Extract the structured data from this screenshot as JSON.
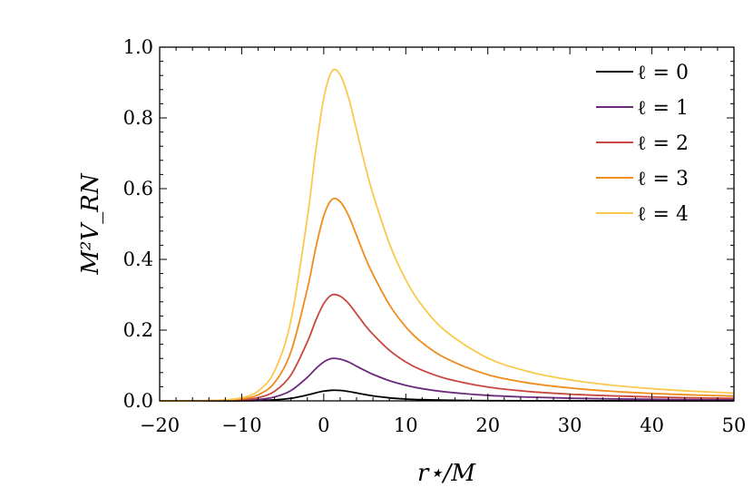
{
  "chart_data": {
    "type": "line",
    "xlabel": "r⋆/M",
    "ylabel": "M²V_RN",
    "xlim": [
      -20,
      50
    ],
    "ylim": [
      0,
      1.0
    ],
    "x_ticks": [
      -20,
      -10,
      0,
      10,
      20,
      30,
      40,
      50
    ],
    "x_tick_labels": [
      "−20",
      "−10",
      "0",
      "10",
      "20",
      "30",
      "40",
      "50"
    ],
    "y_ticks": [
      0,
      0.2,
      0.4,
      0.6,
      0.8,
      1.0
    ],
    "y_tick_labels": [
      "0.0",
      "0.2",
      "0.4",
      "0.6",
      "0.8",
      "1.0"
    ],
    "grid": false,
    "legend_position": "top-right",
    "x": [
      -20,
      -15,
      -12,
      -10,
      -8,
      -6,
      -4,
      -2,
      -1,
      0,
      1,
      2,
      3,
      4,
      5,
      6,
      8,
      10,
      12,
      15,
      20,
      25,
      30,
      35,
      40,
      45,
      50
    ],
    "series": [
      {
        "name": "ℓ = 0",
        "color": "#000000",
        "values": [
          0,
          0,
          0.0001,
          0.0003,
          0.0009,
          0.0027,
          0.0073,
          0.0166,
          0.0226,
          0.0275,
          0.03,
          0.0295,
          0.0265,
          0.0223,
          0.018,
          0.0141,
          0.0085,
          0.0052,
          0.0033,
          0.0018,
          0.0007,
          0.0003,
          0.0001,
          0.0001,
          0,
          0,
          0
        ]
      },
      {
        "name": "ℓ = 1",
        "color": "#6c2a7a",
        "values": [
          0,
          0.0001,
          0.0004,
          0.0012,
          0.0036,
          0.0108,
          0.0292,
          0.0666,
          0.0904,
          0.11,
          0.1198,
          0.118,
          0.11,
          0.098,
          0.086,
          0.075,
          0.057,
          0.044,
          0.0345,
          0.025,
          0.0155,
          0.0105,
          0.0075,
          0.0056,
          0.0043,
          0.0034,
          0.0028
        ]
      },
      {
        "name": "ℓ = 2",
        "color": "#c9473f",
        "values": [
          0,
          0.0002,
          0.0009,
          0.0028,
          0.0089,
          0.027,
          0.0731,
          0.1665,
          0.226,
          0.275,
          0.2995,
          0.296,
          0.276,
          0.246,
          0.215,
          0.188,
          0.143,
          0.11,
          0.0865,
          0.0625,
          0.039,
          0.0265,
          0.019,
          0.0142,
          0.011,
          0.0087,
          0.0071
        ]
      },
      {
        "name": "ℓ = 3",
        "color": "#f08c1e",
        "values": [
          0,
          0.0003,
          0.0018,
          0.0055,
          0.017,
          0.0514,
          0.139,
          0.3165,
          0.4295,
          0.523,
          0.5695,
          0.563,
          0.525,
          0.468,
          0.409,
          0.3575,
          0.272,
          0.209,
          0.1645,
          0.119,
          0.074,
          0.0505,
          0.0365,
          0.0272,
          0.021,
          0.0167,
          0.0136
        ]
      },
      {
        "name": "ℓ = 4",
        "color": "#fbc84e",
        "values": [
          0,
          0.0005,
          0.0029,
          0.009,
          0.0277,
          0.0841,
          0.2274,
          0.518,
          0.703,
          0.8555,
          0.932,
          0.9215,
          0.859,
          0.7655,
          0.6695,
          0.585,
          0.445,
          0.342,
          0.269,
          0.1945,
          0.121,
          0.0825,
          0.0595,
          0.0445,
          0.0345,
          0.0273,
          0.0222
        ]
      }
    ]
  }
}
